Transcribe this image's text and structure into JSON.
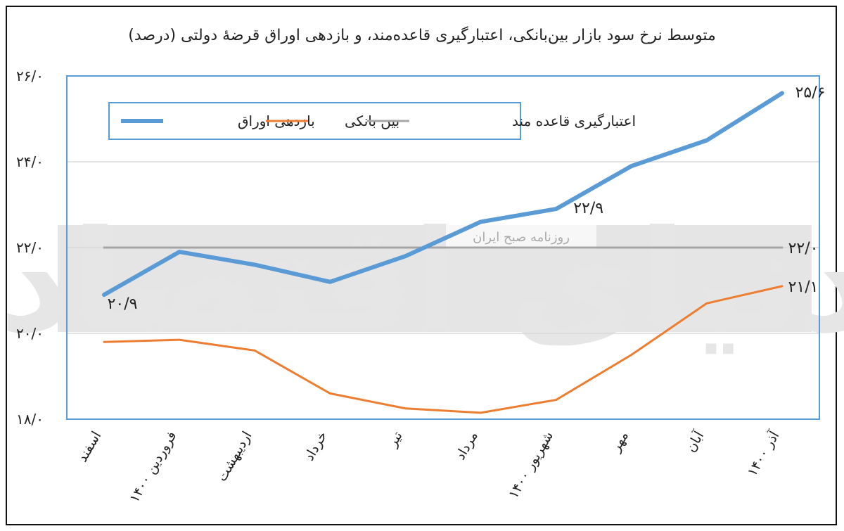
{
  "chart_data": {
    "type": "line",
    "title": "متوسط نرخ سود بازار بین‌بانکی، اعتبارگیری قاعده‌مند، و بازدهی اوراق قرضهٔ دولتی (درصد)",
    "categories": [
      "اسفند",
      "فروردین ۱۴۰۰",
      "اردیبهشت",
      "خرداد",
      "تیر",
      "مرداد",
      "شهریور ۱۴۰۰",
      "مهر",
      "آبان",
      "آذر ۱۴۰۰"
    ],
    "ylim": [
      18,
      26
    ],
    "yticks": [
      18,
      20,
      22,
      24,
      26
    ],
    "ytick_labels": [
      "۱۸/۰",
      "۲۰/۰",
      "۲۲/۰",
      "۲۴/۰",
      "۲۶/۰"
    ],
    "grid": true,
    "legend_position": "top-left",
    "series": [
      {
        "name": "بازدهی اوراق",
        "color": "#5b9bd5",
        "values": [
          20.9,
          21.9,
          21.6,
          21.2,
          21.8,
          22.6,
          22.9,
          23.9,
          24.5,
          25.6
        ]
      },
      {
        "name": "بین بانکی",
        "color": "#ed7d31",
        "values": [
          19.8,
          19.85,
          19.6,
          18.6,
          18.25,
          18.15,
          18.45,
          19.5,
          20.7,
          21.1
        ]
      },
      {
        "name": "اعتبارگیری قاعده مند",
        "color": "#a5a5a5",
        "values": [
          22.0,
          22.0,
          22.0,
          22.0,
          22.0,
          22.0,
          22.0,
          22.0,
          22.0,
          22.0
        ]
      }
    ],
    "annotations": [
      {
        "text": "۲۰/۹",
        "series": 0,
        "index": 0
      },
      {
        "text": "۲۲/۹",
        "series": 0,
        "index": 6
      },
      {
        "text": "۲۵/۶",
        "series": 0,
        "index": 9
      },
      {
        "text": "۲۲/۰",
        "series": 2,
        "index": 9
      },
      {
        "text": "۲۱/۱",
        "series": 1,
        "index": 9
      }
    ]
  },
  "watermark": {
    "main_text": "دنیای اقتصاد",
    "banner_text": "روزنامه صبح ایران"
  }
}
